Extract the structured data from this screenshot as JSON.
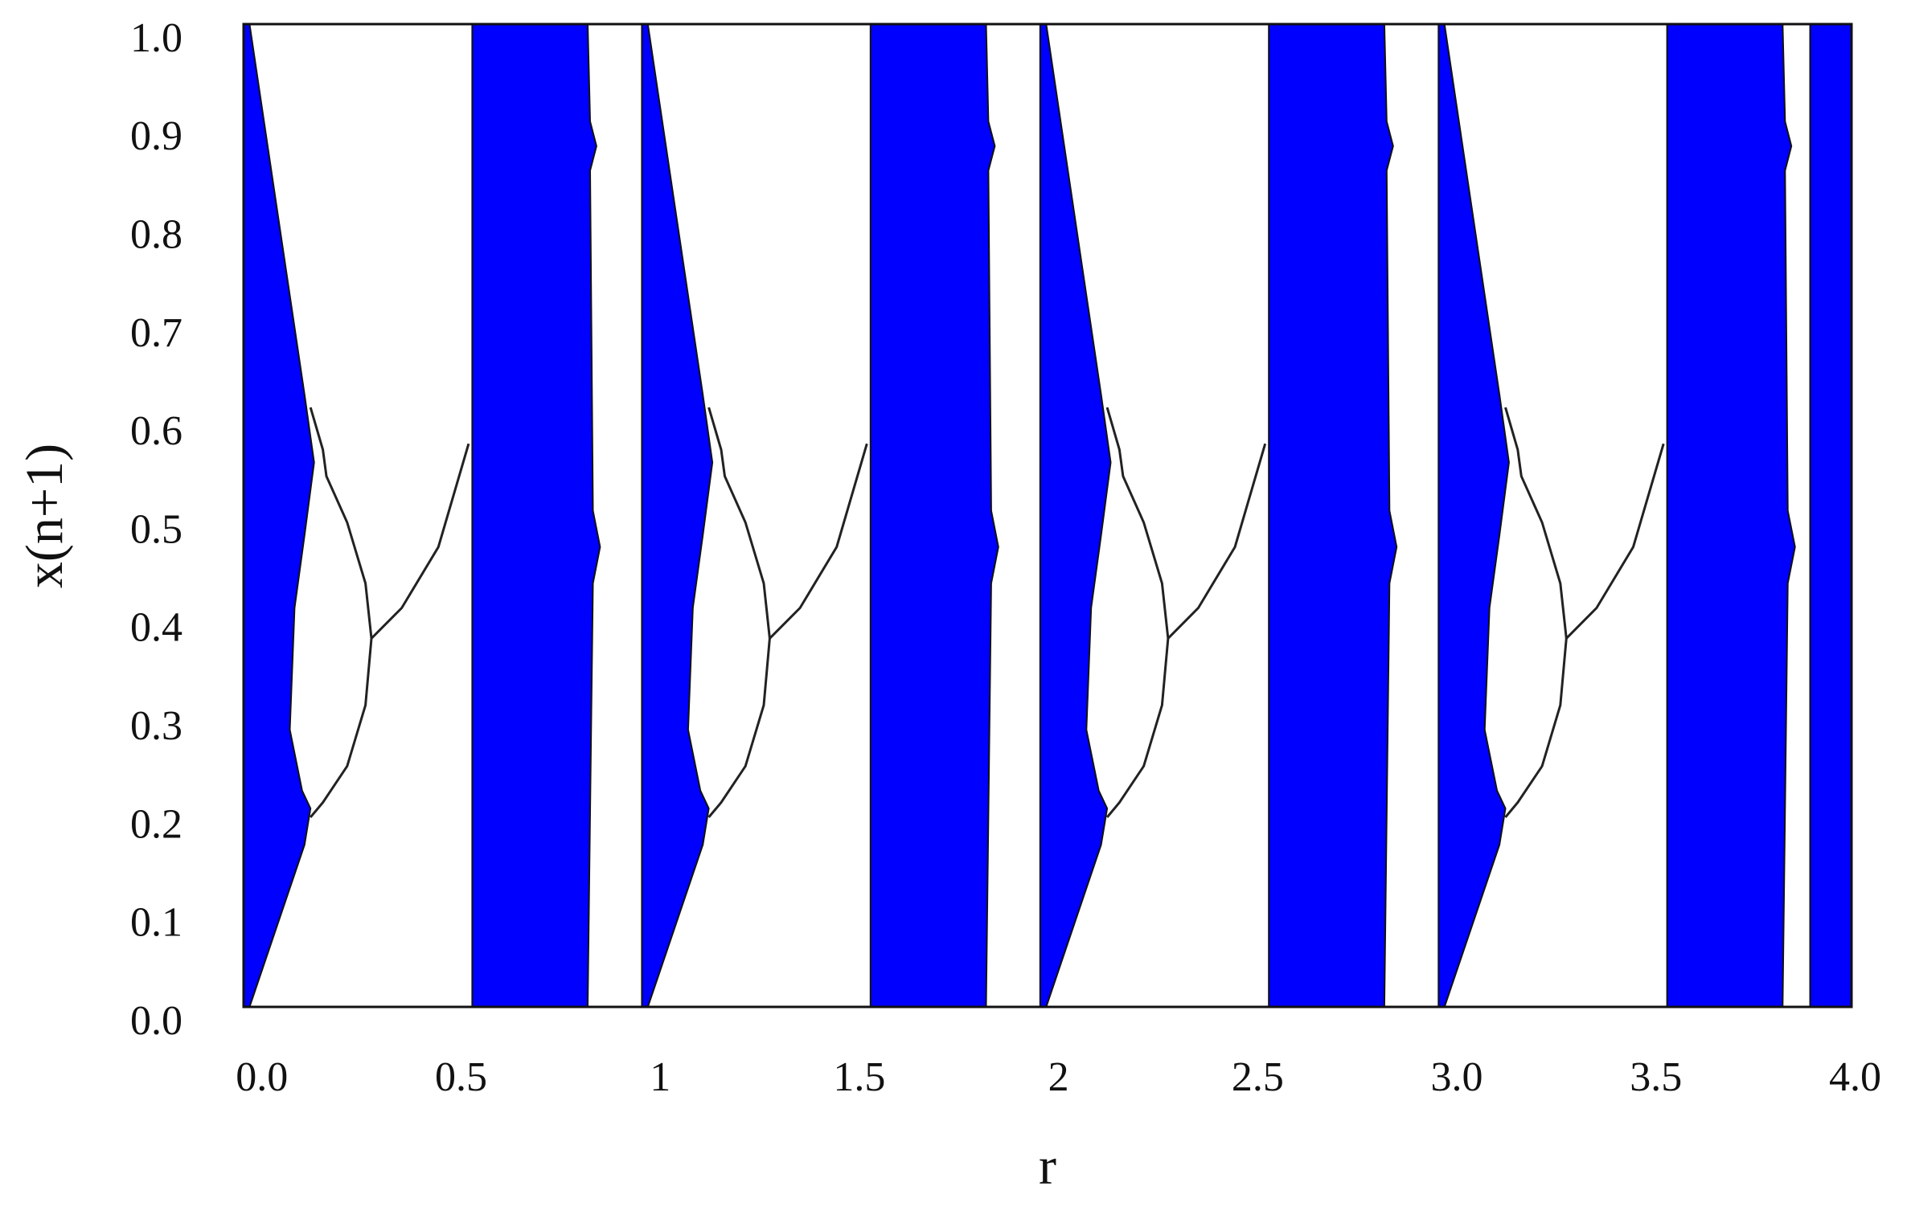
{
  "chart_data": {
    "type": "area",
    "xlabel": "r",
    "ylabel": "x(n+1)",
    "xlim": [
      -0.046,
      3.991
    ],
    "ylim": [
      0,
      1
    ],
    "xticks": [
      {
        "value": 0,
        "label": "0.0"
      },
      0.5,
      1,
      1.5,
      2,
      2.5,
      {
        "value": 3,
        "label": "3.0"
      },
      3.5,
      {
        "value": 4,
        "label": "4.0"
      }
    ],
    "yticks": [
      {
        "value": 0,
        "label": "0.0"
      },
      0.1,
      0.2,
      0.3,
      0.4,
      0.5,
      0.6,
      0.7,
      0.8,
      0.9,
      {
        "value": 1,
        "label": "1.0"
      }
    ],
    "color": "#0000ff",
    "line_color": "#222222",
    "regions": [
      {
        "x": [
          -0.046,
          -0.031,
          0.107,
          0.131,
          0.107,
          0.082,
          0.07,
          0.101,
          0.122,
          0.107,
          -0.031,
          -0.046
        ],
        "y": [
          1,
          1,
          0.623,
          0.554,
          0.48,
          0.406,
          0.282,
          0.22,
          0.202,
          0.165,
          0,
          0
        ]
      },
      {
        "x": [
          0.528,
          0.818,
          0.824,
          0.84,
          0.824,
          0.831,
          0.849,
          0.831,
          0.818,
          0.528
        ],
        "y": [
          1,
          1,
          0.901,
          0.876,
          0.851,
          0.505,
          0.468,
          0.431,
          0,
          0
        ]
      },
      {
        "x": [
          0.954,
          0.969,
          1.107,
          1.131,
          1.107,
          1.082,
          1.07,
          1.101,
          1.122,
          1.107,
          0.969,
          0.954
        ],
        "y": [
          1,
          1,
          0.623,
          0.554,
          0.48,
          0.406,
          0.282,
          0.22,
          0.202,
          0.165,
          0,
          0
        ]
      },
      {
        "x": [
          1.528,
          1.818,
          1.824,
          1.84,
          1.824,
          1.831,
          1.849,
          1.831,
          1.818,
          1.528
        ],
        "y": [
          1,
          1,
          0.901,
          0.876,
          0.851,
          0.505,
          0.468,
          0.431,
          0,
          0
        ]
      },
      {
        "x": [
          1.954,
          1.969,
          2.107,
          2.131,
          2.107,
          2.082,
          2.07,
          2.101,
          2.122,
          2.107,
          1.969,
          1.954
        ],
        "y": [
          1,
          1,
          0.623,
          0.554,
          0.48,
          0.406,
          0.282,
          0.22,
          0.202,
          0.165,
          0,
          0
        ]
      },
      {
        "x": [
          2.528,
          2.818,
          2.824,
          2.84,
          2.824,
          2.831,
          2.849,
          2.831,
          2.818,
          2.528
        ],
        "y": [
          1,
          1,
          0.901,
          0.876,
          0.851,
          0.505,
          0.468,
          0.431,
          0,
          0
        ]
      },
      {
        "x": [
          2.954,
          2.969,
          3.107,
          3.131,
          3.107,
          3.082,
          3.07,
          3.101,
          3.122,
          3.107,
          2.969,
          2.954
        ],
        "y": [
          1,
          1,
          0.623,
          0.554,
          0.48,
          0.406,
          0.282,
          0.22,
          0.202,
          0.165,
          0,
          0
        ]
      },
      {
        "x": [
          3.528,
          3.818,
          3.824,
          3.84,
          3.824,
          3.831,
          3.849,
          3.831,
          3.818,
          3.528
        ],
        "y": [
          1,
          1,
          0.901,
          0.876,
          0.851,
          0.505,
          0.468,
          0.431,
          0,
          0
        ]
      },
      {
        "x": [
          3.887,
          3.991,
          3.991,
          3.887
        ],
        "y": [
          1,
          1,
          0,
          0
        ]
      }
    ],
    "curves": [
      {
        "x": [
          0.122,
          0.153,
          0.162,
          0.214,
          0.26,
          0.275,
          0.26,
          0.214,
          0.153,
          0.122
        ],
        "y": [
          0.61,
          0.567,
          0.54,
          0.493,
          0.431,
          0.375,
          0.307,
          0.245,
          0.208,
          0.193
        ]
      },
      {
        "x": [
          0.275,
          0.351,
          0.443,
          0.519
        ],
        "y": [
          0.375,
          0.406,
          0.468,
          0.573
        ]
      },
      {
        "x": [
          1.122,
          1.153,
          1.162,
          1.214,
          1.26,
          1.275,
          1.26,
          1.214,
          1.153,
          1.122
        ],
        "y": [
          0.61,
          0.567,
          0.54,
          0.493,
          0.431,
          0.375,
          0.307,
          0.245,
          0.208,
          0.193
        ]
      },
      {
        "x": [
          1.275,
          1.351,
          1.443,
          1.519
        ],
        "y": [
          0.375,
          0.406,
          0.468,
          0.573
        ]
      },
      {
        "x": [
          2.122,
          2.153,
          2.162,
          2.214,
          2.26,
          2.275,
          2.26,
          2.214,
          2.153,
          2.122
        ],
        "y": [
          0.61,
          0.567,
          0.54,
          0.493,
          0.431,
          0.375,
          0.307,
          0.245,
          0.208,
          0.193
        ]
      },
      {
        "x": [
          2.275,
          2.351,
          2.443,
          2.519
        ],
        "y": [
          0.375,
          0.406,
          0.468,
          0.573
        ]
      },
      {
        "x": [
          3.122,
          3.153,
          3.162,
          3.214,
          3.26,
          3.275,
          3.26,
          3.214,
          3.153,
          3.122
        ],
        "y": [
          0.61,
          0.567,
          0.54,
          0.493,
          0.431,
          0.375,
          0.307,
          0.245,
          0.208,
          0.193
        ]
      },
      {
        "x": [
          3.275,
          3.351,
          3.443,
          3.519
        ],
        "y": [
          0.375,
          0.406,
          0.468,
          0.573
        ]
      }
    ]
  }
}
